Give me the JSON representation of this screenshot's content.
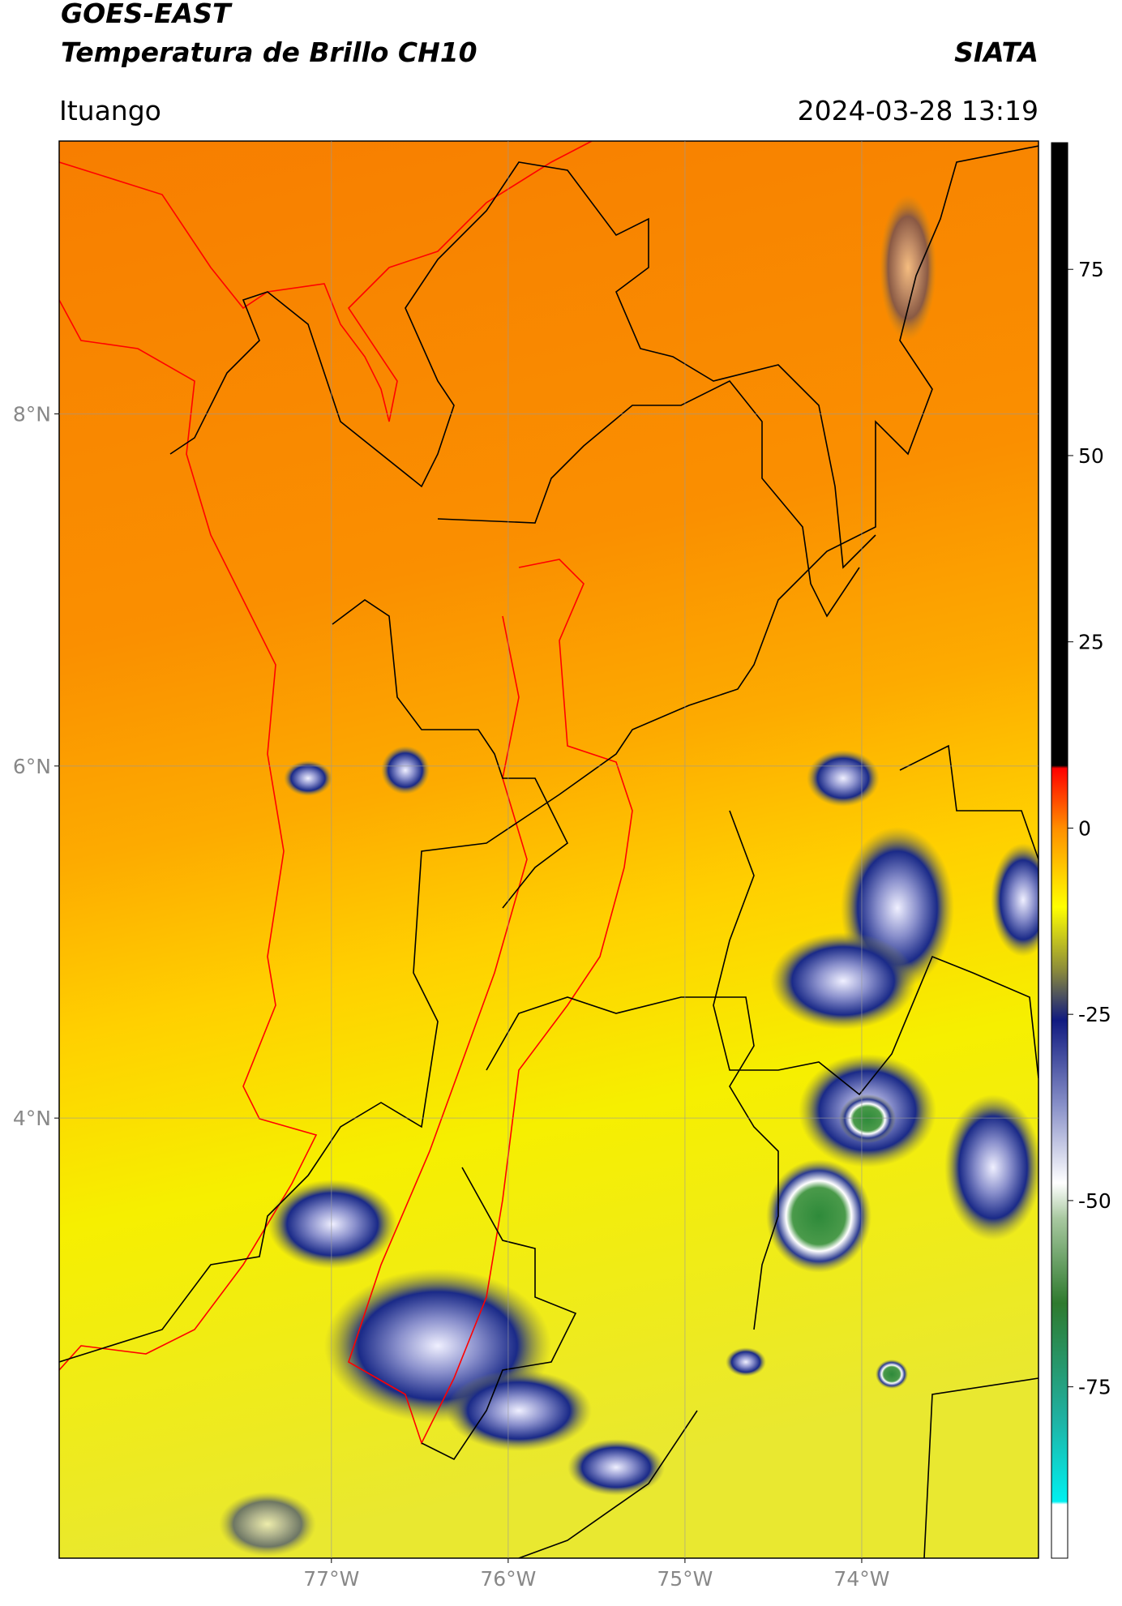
{
  "header": {
    "satellite": "GOES-EAST",
    "product": "Temperatura de Brillo CH10",
    "agency": "SIATA",
    "location": "Ituango",
    "datetime": "2024-03-28 13:19"
  },
  "map": {
    "xlim": [
      -78.54,
      -73.0
    ],
    "ylim": [
      1.5,
      9.55
    ],
    "grid": true,
    "xticks": [
      {
        "value": -77,
        "label": "77°W"
      },
      {
        "value": -76,
        "label": "76°W"
      },
      {
        "value": -75,
        "label": "75°W"
      },
      {
        "value": -74,
        "label": "74°W"
      }
    ],
    "yticks": [
      {
        "value": 4,
        "label": "4°N"
      },
      {
        "value": 6,
        "label": "6°N"
      },
      {
        "value": 8,
        "label": "8°N"
      }
    ]
  },
  "colorbar": {
    "lim": [
      -98,
      92
    ],
    "ticks": [
      -75,
      -50,
      -25,
      0,
      25,
      50,
      75
    ]
  }
}
